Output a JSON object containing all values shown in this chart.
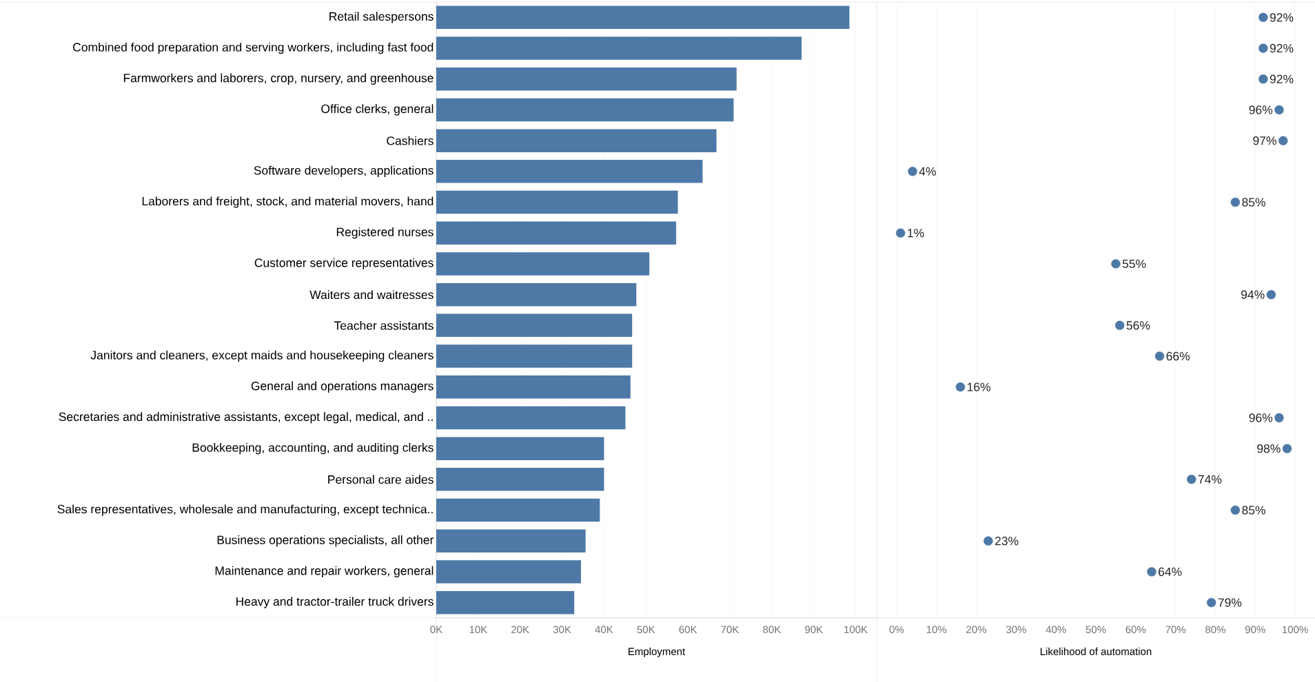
{
  "chart_data": [
    {
      "type": "bar",
      "orientation": "horizontal",
      "xlabel": "Employment",
      "categories": [
        "Retail salespersons",
        "Combined food preparation and serving workers, including fast food",
        "Farmworkers and laborers, crop, nursery, and greenhouse",
        "Office clerks, general",
        "Cashiers",
        "Software developers, applications",
        "Laborers and freight, stock, and material movers, hand",
        "Registered nurses",
        "Customer service representatives",
        "Waiters and waitresses",
        "Teacher assistants",
        "Janitors and cleaners, except maids and housekeeping cleaners",
        "General and operations managers",
        "Secretaries and administrative assistants, except legal, medical, and ..",
        "Bookkeeping, accounting, and auditing clerks",
        "Personal care aides",
        "Sales representatives, wholesale and manufacturing, except technica..",
        "Business operations specialists, all other",
        "Maintenance and repair workers, general",
        "Heavy and tractor-trailer truck drivers"
      ],
      "values": [
        98500,
        87100,
        71600,
        70900,
        66800,
        63500,
        57600,
        57200,
        50800,
        47700,
        46700,
        46700,
        46300,
        45100,
        40000,
        40000,
        39000,
        35600,
        34500,
        32900
      ],
      "color": "#4e79a7",
      "xlim": [
        0,
        105000
      ],
      "xticks": [
        {
          "value": 0,
          "label": "0K"
        },
        {
          "value": 10000,
          "label": "10K"
        },
        {
          "value": 20000,
          "label": "20K"
        },
        {
          "value": 30000,
          "label": "30K"
        },
        {
          "value": 40000,
          "label": "40K"
        },
        {
          "value": 50000,
          "label": "50K"
        },
        {
          "value": 60000,
          "label": "60K"
        },
        {
          "value": 70000,
          "label": "70K"
        },
        {
          "value": 80000,
          "label": "80K"
        },
        {
          "value": 90000,
          "label": "90K"
        },
        {
          "value": 100000,
          "label": "100K"
        }
      ],
      "grid": "x"
    },
    {
      "type": "scatter",
      "orientation": "horizontal",
      "xlabel": "Likelihood of automation",
      "categories": [
        null,
        null,
        null,
        null,
        null,
        null,
        null,
        null,
        null,
        null,
        null,
        null,
        null,
        null,
        null,
        null,
        null,
        null,
        null,
        null
      ],
      "values": [
        92,
        92,
        92,
        96,
        97,
        4,
        85,
        1,
        55,
        94,
        56,
        66,
        16,
        96,
        98,
        74,
        85,
        23,
        64,
        79
      ],
      "value_labels": [
        "92%",
        "92%",
        "92%",
        "96%",
        "97%",
        "4%",
        "85%",
        "1%",
        "55%",
        "94%",
        "56%",
        "66%",
        "16%",
        "96%",
        "98%",
        "74%",
        "85%",
        "23%",
        "64%",
        "79%"
      ],
      "color": "#4e79a7",
      "xlim": [
        -5,
        105
      ],
      "xticks": [
        {
          "value": 0,
          "label": "0%"
        },
        {
          "value": 10,
          "label": "10%"
        },
        {
          "value": 20,
          "label": "20%"
        },
        {
          "value": 30,
          "label": "30%"
        },
        {
          "value": 40,
          "label": "40%"
        },
        {
          "value": 50,
          "label": "50%"
        },
        {
          "value": 60,
          "label": "60%"
        },
        {
          "value": 70,
          "label": "70%"
        },
        {
          "value": 80,
          "label": "80%"
        },
        {
          "value": 90,
          "label": "90%"
        },
        {
          "value": 100,
          "label": "100%"
        }
      ],
      "grid": "x"
    }
  ]
}
